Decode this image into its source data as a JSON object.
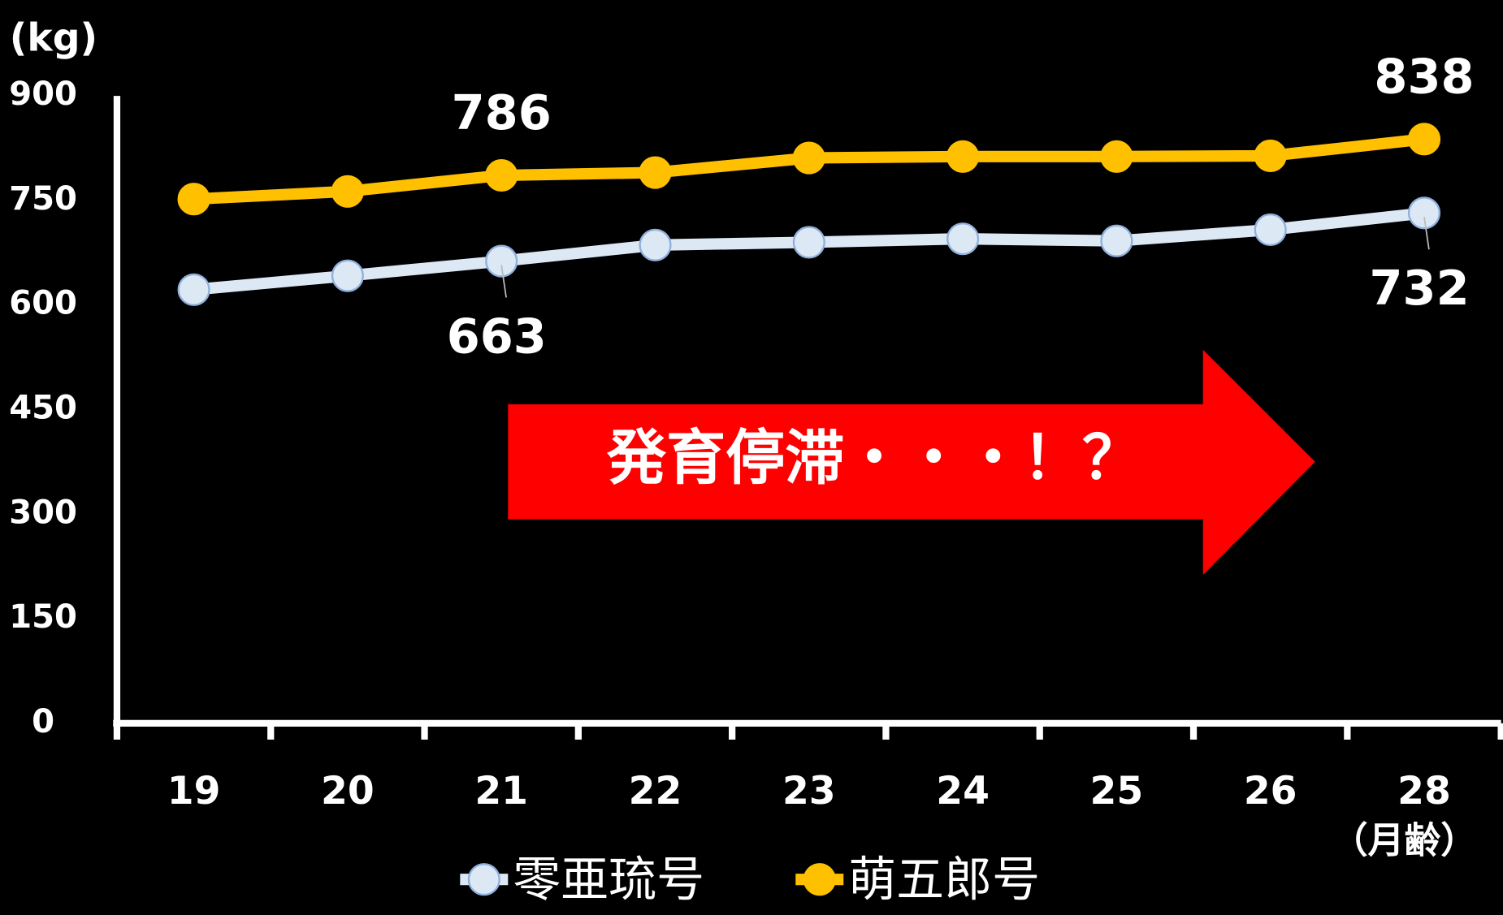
{
  "chart_data": {
    "type": "line",
    "y_label": "(kg)",
    "x_label": "（月齢）",
    "annotation": "発育停滞・・・！？",
    "categories": [
      "19",
      "20",
      "21",
      "22",
      "23",
      "24",
      "25",
      "26",
      "28"
    ],
    "series": [
      {
        "name": "零亜琉号",
        "color": "#dde8f5",
        "values": [
          622,
          642,
          663,
          686,
          690,
          695,
          692,
          708,
          732
        ],
        "value_labels": [
          null,
          null,
          "663",
          null,
          null,
          null,
          null,
          null,
          "732"
        ]
      },
      {
        "name": "萌五郎号",
        "color": "#ffc000",
        "values": [
          752,
          763,
          786,
          790,
          811,
          813,
          813,
          814,
          838
        ],
        "value_labels": [
          null,
          null,
          "786",
          null,
          null,
          null,
          null,
          null,
          "838"
        ]
      }
    ],
    "ylim": [
      0,
      900
    ],
    "yticks": [
      0,
      150,
      300,
      450,
      600,
      750,
      900
    ],
    "grid": false
  }
}
